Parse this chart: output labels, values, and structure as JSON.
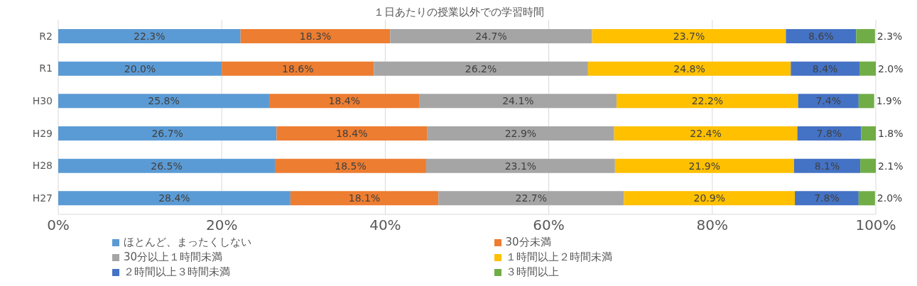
{
  "chart_data": {
    "type": "bar",
    "orientation": "horizontal",
    "stacked": true,
    "title": "１日あたりの授業以外での学習時間",
    "categories": [
      "R2",
      "R1",
      "H30",
      "H29",
      "H28",
      "H27"
    ],
    "series": [
      {
        "name": "ほとんど、まったくしない",
        "color": "#5b9bd5",
        "values": [
          22.3,
          20.0,
          25.8,
          26.7,
          26.5,
          28.4
        ],
        "value_labels": [
          "22.3%",
          "20.0%",
          "25.8%",
          "26.7%",
          "26.5%",
          "28.4%"
        ]
      },
      {
        "name": "30分未満",
        "color": "#ed7d31",
        "values": [
          18.3,
          18.6,
          18.4,
          18.4,
          18.5,
          18.1
        ],
        "value_labels": [
          "18.3%",
          "18.6%",
          "18.4%",
          "18.4%",
          "18.5%",
          "18.1%"
        ]
      },
      {
        "name": "30分以上１時間未満",
        "color": "#a5a5a5",
        "values": [
          24.7,
          26.2,
          24.1,
          22.9,
          23.1,
          22.7
        ],
        "value_labels": [
          "24.7%",
          "26.2%",
          "24.1%",
          "22.9%",
          "23.1%",
          "22.7%"
        ]
      },
      {
        "name": "１時間以上２時間未満",
        "color": "#ffc000",
        "values": [
          23.7,
          24.8,
          22.2,
          22.4,
          21.9,
          20.9
        ],
        "value_labels": [
          "23.7%",
          "24.8%",
          "22.2%",
          "22.4%",
          "21.9%",
          "20.9%"
        ]
      },
      {
        "name": "２時間以上３時間未満",
        "color": "#4472c4",
        "values": [
          8.6,
          8.4,
          7.4,
          7.8,
          8.1,
          7.8
        ],
        "value_labels": [
          "8.6%",
          "8.4%",
          "7.4%",
          "7.8%",
          "8.1%",
          "7.8%"
        ]
      },
      {
        "name": "３時間以上",
        "color": "#70ad47",
        "values": [
          2.3,
          2.0,
          1.9,
          1.8,
          2.1,
          2.0
        ],
        "value_labels": [
          "2.3%",
          "2.0%",
          "1.9%",
          "1.8%",
          "2.1%",
          "2.0%"
        ]
      }
    ],
    "xlim": [
      0,
      100
    ],
    "xticks": [
      {
        "value": 0,
        "label": "0%"
      },
      {
        "value": 20,
        "label": "20%"
      },
      {
        "value": 40,
        "label": "40%"
      },
      {
        "value": 60,
        "label": "60%"
      },
      {
        "value": 80,
        "label": "80%"
      },
      {
        "value": 100,
        "label": "100%"
      }
    ],
    "grid": "x",
    "legend": "bottom"
  }
}
